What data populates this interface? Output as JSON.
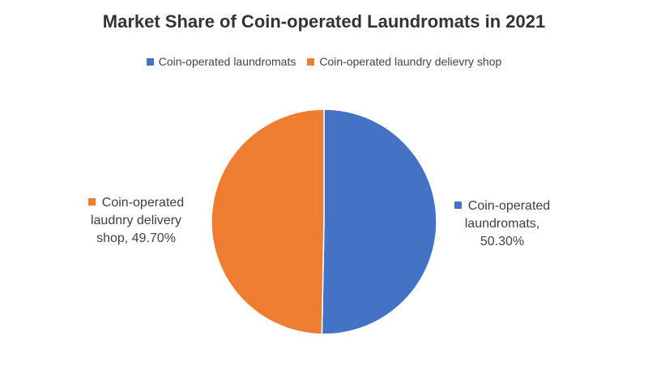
{
  "chart_data": {
    "type": "pie",
    "title": "Market Share of Coin-operated Laundromats in 2021",
    "legend_position": "top",
    "slices": [
      {
        "name": "Coin-operated laundromats",
        "value": 50.3,
        "color": "#4472C4",
        "label_line1": "Coin-operated",
        "label_line2": "laundromats,",
        "label_line3": "50.30%"
      },
      {
        "name": "Coin-operated laundry delievry shop",
        "value": 49.7,
        "color": "#ED7D31",
        "label_line1": "Coin-operated",
        "label_line2": "laudnry delivery",
        "label_line3": "shop, 49.70%"
      }
    ]
  }
}
